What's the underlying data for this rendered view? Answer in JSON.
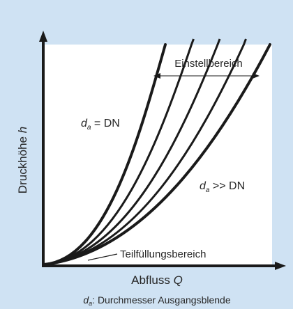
{
  "figure": {
    "colors": {
      "background": "#cfe2f3",
      "plot_area": "#ffffff",
      "ink": "#1a1a1a",
      "text": "#262626"
    },
    "y_axis_label": {
      "prefix": "Druckhöhe ",
      "var": "h"
    },
    "x_axis_label": {
      "prefix": "Abfluss ",
      "var": "Q"
    },
    "label_da_dn": {
      "d": "d",
      "sub": "a",
      "rest": " = DN"
    },
    "label_da_gg": {
      "d": "d",
      "sub": "a",
      "rest": " >> DN"
    },
    "label_range": "Einstellbereich",
    "label_partial": "Teilfüllungsbereich",
    "caption": {
      "d": "d",
      "sub": "a",
      "rest": ": Durchmesser Ausgangsblende"
    },
    "curve_count": 5
  }
}
